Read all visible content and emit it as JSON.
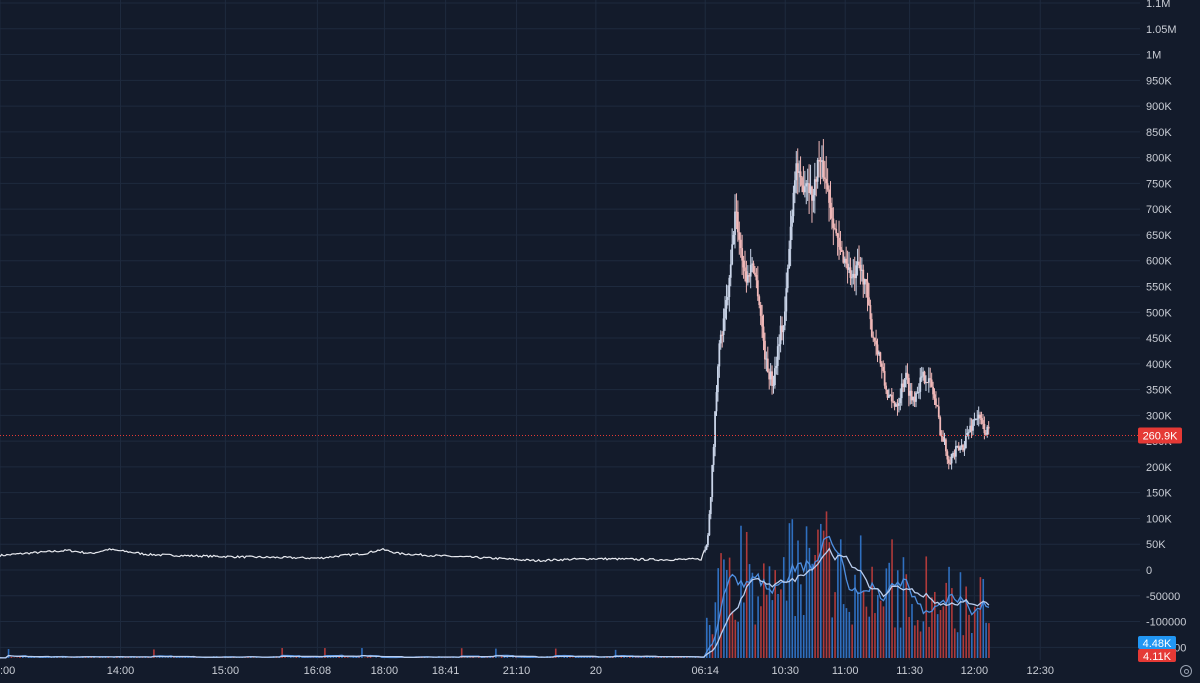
{
  "chart_data": {
    "type": "candlestick",
    "price_axis": {
      "ticks": [
        "1.1M",
        "1.05M",
        "1M",
        "950K",
        "900K",
        "850K",
        "800K",
        "750K",
        "700K",
        "650K",
        "600K",
        "550K",
        "500K",
        "450K",
        "400K",
        "350K",
        "300K",
        "250K",
        "200K",
        "150K",
        "100K",
        "50K",
        "0",
        "-50000",
        "-100000",
        "-150000"
      ],
      "tick_values": [
        1100000,
        1050000,
        1000000,
        950000,
        900000,
        850000,
        800000,
        750000,
        700000,
        650000,
        600000,
        550000,
        500000,
        450000,
        400000,
        350000,
        300000,
        250000,
        200000,
        150000,
        100000,
        50000,
        0,
        -50000,
        -100000,
        -150000
      ],
      "range": [
        -150000,
        1100000
      ]
    },
    "time_axis": {
      "labels": [
        ":00",
        "14:00",
        "15:00",
        "16:08",
        "18:00",
        "18:41",
        "21:10",
        "20",
        "06:14",
        "10:30",
        "11:00",
        "11:30",
        "12:00",
        "12:30"
      ],
      "positions": [
        0,
        0.1057,
        0.1977,
        0.2784,
        0.3372,
        0.3909,
        0.4531,
        0.5227,
        0.6186,
        0.6888,
        0.7414,
        0.7979,
        0.8547,
        0.9125
      ]
    },
    "price_line": {
      "last_value": 260900,
      "last_label": "260.9K",
      "color": "#e53935",
      "line_style": "dotted"
    },
    "volume_labels": [
      {
        "label": "4.48K",
        "color": "#2196f3"
      },
      {
        "label": "4.11K",
        "color": "#e53935"
      }
    ],
    "series": [
      {
        "kind": "price",
        "color": "#e8eaf0",
        "up_color": "#c9d4e8",
        "down_color": "#f0b8b8",
        "keypoints": [
          [
            0.0,
            28000
          ],
          [
            0.02,
            32000
          ],
          [
            0.04,
            35000
          ],
          [
            0.06,
            38000
          ],
          [
            0.08,
            32000
          ],
          [
            0.095,
            40000
          ],
          [
            0.11,
            36000
          ],
          [
            0.13,
            30000
          ],
          [
            0.16,
            28000
          ],
          [
            0.2,
            26000
          ],
          [
            0.25,
            24000
          ],
          [
            0.28,
            23000
          ],
          [
            0.3,
            28000
          ],
          [
            0.32,
            32000
          ],
          [
            0.335,
            40000
          ],
          [
            0.35,
            32000
          ],
          [
            0.38,
            28000
          ],
          [
            0.41,
            25000
          ],
          [
            0.44,
            22000
          ],
          [
            0.47,
            18000
          ],
          [
            0.49,
            20000
          ],
          [
            0.52,
            22000
          ],
          [
            0.55,
            21000
          ],
          [
            0.58,
            20000
          ],
          [
            0.615,
            21000
          ],
          [
            0.62,
            50000
          ],
          [
            0.625,
            200000
          ],
          [
            0.63,
            420000
          ],
          [
            0.635,
            480000
          ],
          [
            0.64,
            560000
          ],
          [
            0.645,
            700000
          ],
          [
            0.65,
            620000
          ],
          [
            0.655,
            560000
          ],
          [
            0.66,
            600000
          ],
          [
            0.665,
            540000
          ],
          [
            0.672,
            400000
          ],
          [
            0.678,
            360000
          ],
          [
            0.684,
            460000
          ],
          [
            0.688,
            480000
          ],
          [
            0.693,
            650000
          ],
          [
            0.698,
            790000
          ],
          [
            0.703,
            740000
          ],
          [
            0.708,
            760000
          ],
          [
            0.713,
            720000
          ],
          [
            0.718,
            800000
          ],
          [
            0.724,
            760000
          ],
          [
            0.73,
            690000
          ],
          [
            0.736,
            620000
          ],
          [
            0.742,
            600000
          ],
          [
            0.748,
            560000
          ],
          [
            0.753,
            590000
          ],
          [
            0.759,
            560000
          ],
          [
            0.764,
            470000
          ],
          [
            0.77,
            430000
          ],
          [
            0.776,
            360000
          ],
          [
            0.782,
            320000
          ],
          [
            0.788,
            330000
          ],
          [
            0.794,
            380000
          ],
          [
            0.8,
            330000
          ],
          [
            0.806,
            360000
          ],
          [
            0.812,
            380000
          ],
          [
            0.818,
            350000
          ],
          [
            0.822,
            310000
          ],
          [
            0.826,
            260000
          ],
          [
            0.832,
            220000
          ],
          [
            0.838,
            225000
          ],
          [
            0.844,
            240000
          ],
          [
            0.85,
            270000
          ],
          [
            0.856,
            300000
          ],
          [
            0.862,
            280000
          ],
          [
            0.868,
            260900
          ]
        ]
      },
      {
        "kind": "volume",
        "up_color": "#2f6fbf",
        "down_color": "#b03a3a"
      },
      {
        "kind": "volume_ma_fast",
        "color": "#4f8fe0"
      },
      {
        "kind": "volume_ma_slow",
        "color": "#b9cdee"
      }
    ]
  }
}
